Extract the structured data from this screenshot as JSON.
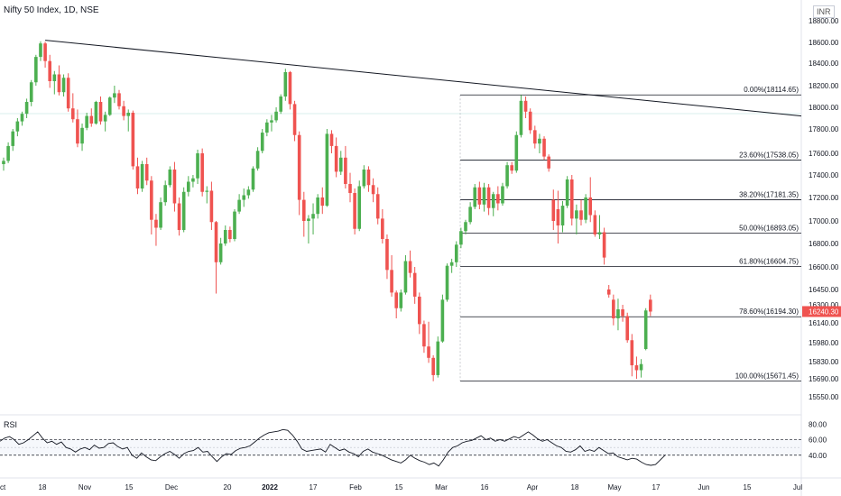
{
  "header": {
    "title": "Nifty 50 Index, 1D, NSE",
    "currency": "INR"
  },
  "price_axis": {
    "ticks": [
      "18800.00",
      "18600.00",
      "18400.00",
      "18200.00",
      "18000.00",
      "17800.00",
      "17600.00",
      "17400.00",
      "17200.00",
      "17000.00",
      "16800.00",
      "16600.00",
      "16450.00",
      "16300.00",
      "16140.00",
      "15980.00",
      "15830.00",
      "15690.00",
      "15550.00"
    ],
    "last_price": "16240.30"
  },
  "rsi": {
    "label": "RSI",
    "ticks": [
      "80.00",
      "60.00",
      "40.00"
    ]
  },
  "time_axis": {
    "labels": [
      "ct",
      "18",
      "Nov",
      "15",
      "Dec",
      "20",
      "2022",
      "17",
      "Feb",
      "15",
      "Mar",
      "16",
      "Apr",
      "18",
      "May",
      "17",
      "Jun",
      "15",
      "Jul"
    ]
  },
  "fibonacci": {
    "labels": [
      "0.00%(18114.65)",
      "23.60%(17538.05)",
      "38.20%(17181.35)",
      "50.00%(16893.05)",
      "61.80%(16604.75)",
      "78.60%(16194.30)",
      "100.00%(15671.45)"
    ]
  },
  "colors": {
    "up": "#26a69a",
    "up_fill": "#4caf50",
    "down": "#ef5350",
    "last_price_bg": "#ef5350",
    "line": "#131722"
  },
  "chart_data": {
    "type": "candlestick",
    "symbol": "Nifty 50 Index",
    "interval": "1D",
    "exchange": "NSE",
    "candles": [
      {
        "o": 17500,
        "h": 17560,
        "l": 17440,
        "c": 17530
      },
      {
        "o": 17530,
        "h": 17690,
        "l": 17510,
        "c": 17660
      },
      {
        "o": 17660,
        "h": 17800,
        "l": 17620,
        "c": 17780
      },
      {
        "o": 17780,
        "h": 17900,
        "l": 17740,
        "c": 17870
      },
      {
        "o": 17870,
        "h": 17960,
        "l": 17830,
        "c": 17940
      },
      {
        "o": 17940,
        "h": 18080,
        "l": 17900,
        "c": 18050
      },
      {
        "o": 18050,
        "h": 18250,
        "l": 18010,
        "c": 18230
      },
      {
        "o": 18230,
        "h": 18480,
        "l": 18200,
        "c": 18460
      },
      {
        "o": 18460,
        "h": 18610,
        "l": 18420,
        "c": 18590
      },
      {
        "o": 18590,
        "h": 18605,
        "l": 18360,
        "c": 18420
      },
      {
        "o": 18420,
        "h": 18480,
        "l": 18180,
        "c": 18240
      },
      {
        "o": 18240,
        "h": 18330,
        "l": 18120,
        "c": 18300
      },
      {
        "o": 18300,
        "h": 18380,
        "l": 18110,
        "c": 18140
      },
      {
        "o": 18140,
        "h": 18300,
        "l": 18100,
        "c": 18270
      },
      {
        "o": 18270,
        "h": 18310,
        "l": 17960,
        "c": 17990
      },
      {
        "o": 17990,
        "h": 18130,
        "l": 17860,
        "c": 17890
      },
      {
        "o": 17890,
        "h": 17980,
        "l": 17650,
        "c": 17680
      },
      {
        "o": 17680,
        "h": 17850,
        "l": 17620,
        "c": 17810
      },
      {
        "o": 17810,
        "h": 17950,
        "l": 17790,
        "c": 17920
      },
      {
        "o": 17920,
        "h": 17990,
        "l": 17820,
        "c": 17850
      },
      {
        "o": 17850,
        "h": 18060,
        "l": 17840,
        "c": 18050
      },
      {
        "o": 18050,
        "h": 18100,
        "l": 17840,
        "c": 17870
      },
      {
        "o": 17870,
        "h": 17960,
        "l": 17780,
        "c": 17930
      },
      {
        "o": 17930,
        "h": 18100,
        "l": 17920,
        "c": 18090
      },
      {
        "o": 18090,
        "h": 18200,
        "l": 18040,
        "c": 18130
      },
      {
        "o": 18130,
        "h": 18160,
        "l": 17980,
        "c": 18010
      },
      {
        "o": 18010,
        "h": 18060,
        "l": 17880,
        "c": 17920
      },
      {
        "o": 17920,
        "h": 17980,
        "l": 17780,
        "c": 17950
      },
      {
        "o": 17950,
        "h": 17970,
        "l": 17450,
        "c": 17480
      },
      {
        "o": 17480,
        "h": 17560,
        "l": 17230,
        "c": 17280
      },
      {
        "o": 17280,
        "h": 17530,
        "l": 17250,
        "c": 17500
      },
      {
        "o": 17500,
        "h": 17560,
        "l": 17310,
        "c": 17350
      },
      {
        "o": 17350,
        "h": 17390,
        "l": 16880,
        "c": 17010
      },
      {
        "o": 17010,
        "h": 17060,
        "l": 16780,
        "c": 16940
      },
      {
        "o": 16940,
        "h": 17200,
        "l": 16920,
        "c": 17160
      },
      {
        "o": 17160,
        "h": 17350,
        "l": 17130,
        "c": 17310
      },
      {
        "o": 17310,
        "h": 17480,
        "l": 17290,
        "c": 17450
      },
      {
        "o": 17450,
        "h": 17520,
        "l": 17080,
        "c": 17150
      },
      {
        "o": 17150,
        "h": 17200,
        "l": 16870,
        "c": 16920
      },
      {
        "o": 16920,
        "h": 17290,
        "l": 16900,
        "c": 17250
      },
      {
        "o": 17250,
        "h": 17390,
        "l": 17210,
        "c": 17340
      },
      {
        "o": 17340,
        "h": 17400,
        "l": 17290,
        "c": 17370
      },
      {
        "o": 17370,
        "h": 17630,
        "l": 17320,
        "c": 17600
      },
      {
        "o": 17600,
        "h": 17640,
        "l": 17210,
        "c": 17250
      },
      {
        "o": 17250,
        "h": 17300,
        "l": 17150,
        "c": 17260
      },
      {
        "o": 17260,
        "h": 17340,
        "l": 16920,
        "c": 16990
      },
      {
        "o": 16990,
        "h": 17000,
        "l": 16410,
        "c": 16640
      },
      {
        "o": 16640,
        "h": 16850,
        "l": 16620,
        "c": 16800
      },
      {
        "o": 16800,
        "h": 16960,
        "l": 16780,
        "c": 16920
      },
      {
        "o": 16920,
        "h": 16950,
        "l": 16810,
        "c": 16840
      },
      {
        "o": 16840,
        "h": 17100,
        "l": 16820,
        "c": 17080
      },
      {
        "o": 17080,
        "h": 17230,
        "l": 17060,
        "c": 17180
      },
      {
        "o": 17180,
        "h": 17280,
        "l": 17120,
        "c": 17220
      },
      {
        "o": 17220,
        "h": 17300,
        "l": 17190,
        "c": 17270
      },
      {
        "o": 17270,
        "h": 17480,
        "l": 17250,
        "c": 17460
      },
      {
        "o": 17460,
        "h": 17650,
        "l": 17440,
        "c": 17620
      },
      {
        "o": 17620,
        "h": 17800,
        "l": 17600,
        "c": 17770
      },
      {
        "o": 17770,
        "h": 17890,
        "l": 17740,
        "c": 17860
      },
      {
        "o": 17860,
        "h": 17930,
        "l": 17780,
        "c": 17880
      },
      {
        "o": 17880,
        "h": 18000,
        "l": 17860,
        "c": 17960
      },
      {
        "o": 17960,
        "h": 18120,
        "l": 17940,
        "c": 18100
      },
      {
        "o": 18100,
        "h": 18350,
        "l": 18060,
        "c": 18320
      },
      {
        "o": 18320,
        "h": 18330,
        "l": 17980,
        "c": 18030
      },
      {
        "o": 18030,
        "h": 18060,
        "l": 17700,
        "c": 17750
      },
      {
        "o": 17750,
        "h": 17780,
        "l": 17050,
        "c": 17180
      },
      {
        "o": 17180,
        "h": 17250,
        "l": 16860,
        "c": 17000
      },
      {
        "o": 17000,
        "h": 17050,
        "l": 16800,
        "c": 17020
      },
      {
        "o": 17020,
        "h": 17150,
        "l": 16880,
        "c": 17060
      },
      {
        "o": 17060,
        "h": 17230,
        "l": 17020,
        "c": 17200
      },
      {
        "o": 17200,
        "h": 17290,
        "l": 17060,
        "c": 17130
      },
      {
        "o": 17130,
        "h": 17800,
        "l": 17120,
        "c": 17760
      },
      {
        "o": 17760,
        "h": 17790,
        "l": 17600,
        "c": 17660
      },
      {
        "o": 17660,
        "h": 17730,
        "l": 17380,
        "c": 17430
      },
      {
        "o": 17430,
        "h": 17620,
        "l": 17400,
        "c": 17560
      },
      {
        "o": 17560,
        "h": 17660,
        "l": 17280,
        "c": 17320
      },
      {
        "o": 17320,
        "h": 17420,
        "l": 17160,
        "c": 17240
      },
      {
        "o": 17240,
        "h": 17280,
        "l": 16880,
        "c": 16930
      },
      {
        "o": 16930,
        "h": 17350,
        "l": 16910,
        "c": 17300
      },
      {
        "o": 17300,
        "h": 17490,
        "l": 17280,
        "c": 17450
      },
      {
        "o": 17450,
        "h": 17480,
        "l": 17250,
        "c": 17310
      },
      {
        "o": 17310,
        "h": 17370,
        "l": 17160,
        "c": 17230
      },
      {
        "o": 17230,
        "h": 17290,
        "l": 16970,
        "c": 17020
      },
      {
        "o": 17020,
        "h": 17100,
        "l": 16800,
        "c": 16840
      },
      {
        "o": 16840,
        "h": 16880,
        "l": 16520,
        "c": 16580
      },
      {
        "o": 16580,
        "h": 16700,
        "l": 16380,
        "c": 16420
      },
      {
        "o": 16420,
        "h": 16440,
        "l": 16180,
        "c": 16270
      },
      {
        "o": 16270,
        "h": 16450,
        "l": 16240,
        "c": 16420
      },
      {
        "o": 16420,
        "h": 16700,
        "l": 16400,
        "c": 16650
      },
      {
        "o": 16650,
        "h": 16740,
        "l": 16530,
        "c": 16560
      },
      {
        "o": 16560,
        "h": 16600,
        "l": 16310,
        "c": 16380
      },
      {
        "o": 16380,
        "h": 16420,
        "l": 16050,
        "c": 16130
      },
      {
        "o": 16130,
        "h": 16160,
        "l": 15900,
        "c": 15950
      },
      {
        "o": 15950,
        "h": 16150,
        "l": 15820,
        "c": 15860
      },
      {
        "o": 15860,
        "h": 15880,
        "l": 15671,
        "c": 15720
      },
      {
        "o": 15720,
        "h": 16030,
        "l": 15700,
        "c": 15990
      },
      {
        "o": 15990,
        "h": 16400,
        "l": 15980,
        "c": 16350
      },
      {
        "o": 16350,
        "h": 16630,
        "l": 16330,
        "c": 16610
      },
      {
        "o": 16610,
        "h": 16670,
        "l": 16560,
        "c": 16640
      },
      {
        "o": 16640,
        "h": 16820,
        "l": 16600,
        "c": 16790
      },
      {
        "o": 16790,
        "h": 16940,
        "l": 16760,
        "c": 16910
      },
      {
        "o": 16910,
        "h": 17010,
        "l": 16880,
        "c": 16990
      },
      {
        "o": 16990,
        "h": 17160,
        "l": 16970,
        "c": 17120
      },
      {
        "o": 17120,
        "h": 17320,
        "l": 17100,
        "c": 17290
      },
      {
        "o": 17290,
        "h": 17340,
        "l": 17100,
        "c": 17140
      },
      {
        "o": 17140,
        "h": 17330,
        "l": 17080,
        "c": 17290
      },
      {
        "o": 17290,
        "h": 17320,
        "l": 17050,
        "c": 17110
      },
      {
        "o": 17110,
        "h": 17250,
        "l": 17040,
        "c": 17230
      },
      {
        "o": 17230,
        "h": 17300,
        "l": 17090,
        "c": 17150
      },
      {
        "o": 17150,
        "h": 17330,
        "l": 17130,
        "c": 17300
      },
      {
        "o": 17300,
        "h": 17520,
        "l": 17280,
        "c": 17490
      },
      {
        "o": 17490,
        "h": 17520,
        "l": 17410,
        "c": 17440
      },
      {
        "o": 17440,
        "h": 17780,
        "l": 17420,
        "c": 17750
      },
      {
        "o": 17750,
        "h": 18114,
        "l": 17730,
        "c": 18060
      },
      {
        "o": 18060,
        "h": 18100,
        "l": 17900,
        "c": 17960
      },
      {
        "o": 17960,
        "h": 17990,
        "l": 17760,
        "c": 17790
      },
      {
        "o": 17790,
        "h": 17830,
        "l": 17640,
        "c": 17680
      },
      {
        "o": 17680,
        "h": 17760,
        "l": 17600,
        "c": 17720
      },
      {
        "o": 17720,
        "h": 17740,
        "l": 17540,
        "c": 17570
      },
      {
        "o": 17570,
        "h": 17590,
        "l": 17430,
        "c": 17460
      },
      {
        "o": 17180,
        "h": 17270,
        "l": 16920,
        "c": 17000
      },
      {
        "o": 17100,
        "h": 17260,
        "l": 16800,
        "c": 16960
      },
      {
        "o": 16960,
        "h": 17170,
        "l": 16900,
        "c": 17130
      },
      {
        "o": 17130,
        "h": 17390,
        "l": 17110,
        "c": 17360
      },
      {
        "o": 17360,
        "h": 17400,
        "l": 16960,
        "c": 17020
      },
      {
        "o": 17020,
        "h": 17140,
        "l": 16880,
        "c": 17090
      },
      {
        "o": 17090,
        "h": 17180,
        "l": 16960,
        "c": 17010
      },
      {
        "o": 17010,
        "h": 17230,
        "l": 16980,
        "c": 17200
      },
      {
        "o": 17200,
        "h": 17380,
        "l": 16990,
        "c": 17050
      },
      {
        "o": 17050,
        "h": 17090,
        "l": 16860,
        "c": 16880
      },
      {
        "o": 16880,
        "h": 17050,
        "l": 16840,
        "c": 16900
      },
      {
        "o": 16900,
        "h": 16940,
        "l": 16620,
        "c": 16680
      },
      {
        "o": 16450,
        "h": 16480,
        "l": 16370,
        "c": 16400
      },
      {
        "o": 16350,
        "h": 16400,
        "l": 16120,
        "c": 16180
      },
      {
        "o": 16180,
        "h": 16360,
        "l": 16080,
        "c": 16260
      },
      {
        "o": 16260,
        "h": 16300,
        "l": 16150,
        "c": 16200
      },
      {
        "o": 16200,
        "h": 16230,
        "l": 15980,
        "c": 16000
      },
      {
        "o": 16000,
        "h": 16050,
        "l": 15710,
        "c": 15800
      },
      {
        "o": 15800,
        "h": 15870,
        "l": 15690,
        "c": 15760
      },
      {
        "o": 15760,
        "h": 15850,
        "l": 15700,
        "c": 15810
      },
      {
        "o": 15930,
        "h": 16270,
        "l": 15920,
        "c": 16250
      },
      {
        "o": 16350,
        "h": 16400,
        "l": 16200,
        "c": 16240
      }
    ],
    "last": 16240.3,
    "trendline": {
      "from": {
        "i": 9,
        "price": 18620
      },
      "to": {
        "i": "end",
        "price": 17920
      }
    },
    "fibonacci": {
      "levels": [
        0,
        23.6,
        38.2,
        50.0,
        61.8,
        78.6,
        100.0
      ],
      "prices": [
        18114.65,
        17538.05,
        17181.35,
        16893.05,
        16604.75,
        16194.3,
        15671.45
      ]
    },
    "rsi": {
      "values": [
        58,
        62,
        64,
        60,
        54,
        56,
        60,
        65,
        70,
        62,
        56,
        58,
        54,
        57,
        50,
        48,
        44,
        48,
        50,
        47,
        53,
        49,
        50,
        55,
        56,
        51,
        48,
        50,
        40,
        36,
        43,
        38,
        34,
        33,
        38,
        42,
        45,
        41,
        36,
        42,
        45,
        46,
        50,
        44,
        45,
        38,
        32,
        38,
        42,
        41,
        46,
        49,
        50,
        52,
        57,
        62,
        66,
        69,
        70,
        71,
        73,
        72,
        66,
        58,
        48,
        45,
        46,
        47,
        48,
        44,
        54,
        50,
        46,
        48,
        44,
        42,
        38,
        45,
        48,
        44,
        42,
        40,
        37,
        34,
        32,
        30,
        34,
        40,
        36,
        33,
        31,
        28,
        30,
        26,
        34,
        44,
        50,
        52,
        56,
        58,
        59,
        62,
        65,
        60,
        62,
        58,
        60,
        58,
        61,
        64,
        62,
        66,
        70,
        66,
        61,
        58,
        60,
        56,
        52,
        50,
        45,
        44,
        47,
        52,
        45,
        47,
        45,
        50,
        46,
        42,
        43,
        38,
        36,
        34,
        36,
        35,
        31,
        28,
        27,
        28,
        34,
        40
      ],
      "overbought": 60,
      "oversold": 40,
      "range": [
        20,
        85
      ]
    }
  }
}
